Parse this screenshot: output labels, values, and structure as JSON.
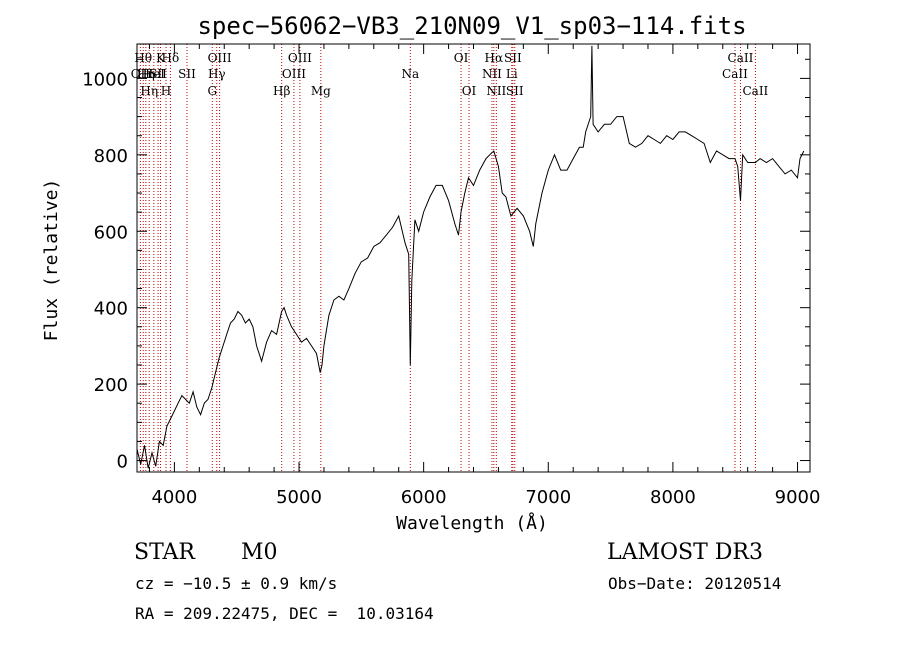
{
  "chart_data": {
    "type": "line",
    "title": "spec−56062−VB3_210N09_V1_sp03−114.fits",
    "xlabel": "Wavelength (Å)",
    "ylabel": "Flux (relative)",
    "xlim": [
      3700,
      9100
    ],
    "ylim": [
      -30,
      1090
    ],
    "x_ticks": [
      4000,
      5000,
      6000,
      7000,
      8000,
      9000
    ],
    "y_ticks": [
      0,
      200,
      400,
      600,
      800,
      1000
    ],
    "grid": false,
    "line_color": "#000000",
    "marker_color": "#c00000",
    "series": [
      {
        "x": [
          3700,
          3730,
          3760,
          3790,
          3820,
          3850,
          3880,
          3910,
          3940,
          3970,
          4000,
          4030,
          4060,
          4090,
          4120,
          4150,
          4180,
          4210,
          4240,
          4270,
          4300,
          4330,
          4360,
          4390,
          4420,
          4450,
          4480,
          4510,
          4540,
          4570,
          4600,
          4630,
          4660,
          4700,
          4740,
          4780,
          4820,
          4860,
          4880,
          4900,
          4940,
          4980,
          5020,
          5060,
          5100,
          5140,
          5170,
          5184,
          5200,
          5240,
          5280,
          5320,
          5360,
          5400,
          5450,
          5500,
          5550,
          5600,
          5650,
          5700,
          5750,
          5800,
          5850,
          5880,
          5893,
          5905,
          5930,
          5960,
          6000,
          6050,
          6100,
          6150,
          6200,
          6250,
          6280,
          6300,
          6330,
          6360,
          6400,
          6450,
          6500,
          6530,
          6563,
          6600,
          6630,
          6660,
          6700,
          6750,
          6800,
          6850,
          6880,
          6900,
          6950,
          7000,
          7050,
          7100,
          7150,
          7200,
          7250,
          7280,
          7300,
          7340,
          7350,
          7360,
          7400,
          7450,
          7500,
          7550,
          7600,
          7650,
          7700,
          7750,
          7800,
          7850,
          7900,
          7950,
          8000,
          8050,
          8100,
          8150,
          8200,
          8250,
          8300,
          8350,
          8400,
          8450,
          8498,
          8520,
          8542,
          8560,
          8600,
          8662,
          8700,
          8750,
          8800,
          8850,
          8900,
          8950,
          9000,
          9020,
          9050
        ],
        "y": [
          30,
          -10,
          40,
          -20,
          20,
          -15,
          50,
          40,
          90,
          110,
          130,
          150,
          170,
          160,
          150,
          180,
          140,
          120,
          150,
          160,
          190,
          230,
          270,
          300,
          330,
          360,
          370,
          390,
          380,
          360,
          370,
          350,
          300,
          260,
          310,
          340,
          330,
          390,
          400,
          380,
          350,
          330,
          310,
          320,
          300,
          280,
          230,
          250,
          300,
          380,
          420,
          430,
          420,
          450,
          490,
          520,
          530,
          560,
          570,
          590,
          610,
          640,
          570,
          540,
          250,
          470,
          630,
          600,
          650,
          690,
          720,
          720,
          680,
          620,
          590,
          650,
          700,
          740,
          720,
          760,
          790,
          800,
          810,
          770,
          700,
          690,
          640,
          660,
          640,
          600,
          560,
          620,
          700,
          760,
          800,
          760,
          760,
          790,
          820,
          820,
          860,
          900,
          1085,
          880,
          860,
          880,
          880,
          900,
          900,
          830,
          820,
          830,
          850,
          840,
          830,
          850,
          840,
          860,
          860,
          850,
          840,
          830,
          780,
          810,
          800,
          790,
          790,
          770,
          680,
          800,
          780,
          780,
          790,
          780,
          790,
          770,
          750,
          760,
          740,
          790,
          810
        ]
      }
    ],
    "line_markers": [
      {
        "x": 3727,
        "row": 1,
        "label": "OII"
      },
      {
        "x": 3750,
        "row": 0,
        "label": "Hθ"
      },
      {
        "x": 3771,
        "row": 1,
        "label": "Hη"
      },
      {
        "x": 3798,
        "row": 2,
        "label": "Hη"
      },
      {
        "x": 3835,
        "row": 1,
        "label": "HeI"
      },
      {
        "x": 3869,
        "row": 1,
        "label": "SII"
      },
      {
        "x": 3889,
        "row": 0,
        "label": "K"
      },
      {
        "x": 3933,
        "row": 2,
        "label": "H"
      },
      {
        "x": 3968,
        "row": 0,
        "label": "Hδ"
      },
      {
        "x": 4101,
        "row": 1,
        "label": "SII"
      },
      {
        "x": 4304,
        "row": 2,
        "label": "G"
      },
      {
        "x": 4340,
        "row": 1,
        "label": "Hγ"
      },
      {
        "x": 4363,
        "row": 0,
        "label": "OIII"
      },
      {
        "x": 4861,
        "row": 2,
        "label": "Hβ"
      },
      {
        "x": 4959,
        "row": 1,
        "label": "OIII"
      },
      {
        "x": 5007,
        "row": 0,
        "label": "OIII"
      },
      {
        "x": 5175,
        "row": 2,
        "label": "Mg"
      },
      {
        "x": 5893,
        "row": 1,
        "label": "Na"
      },
      {
        "x": 6300,
        "row": 0,
        "label": "OI"
      },
      {
        "x": 6364,
        "row": 2,
        "label": "OI"
      },
      {
        "x": 6548,
        "row": 1,
        "label": "NII"
      },
      {
        "x": 6563,
        "row": 0,
        "label": "Hα"
      },
      {
        "x": 6583,
        "row": 2,
        "label": "NII"
      },
      {
        "x": 6707,
        "row": 1,
        "label": "Li"
      },
      {
        "x": 6716,
        "row": 0,
        "label": "SII"
      },
      {
        "x": 6731,
        "row": 2,
        "label": "SII"
      },
      {
        "x": 8498,
        "row": 1,
        "label": "CaII"
      },
      {
        "x": 8542,
        "row": 0,
        "label": "CaII"
      },
      {
        "x": 8662,
        "row": 2,
        "label": "CaII"
      }
    ]
  },
  "info": {
    "object_class": "STAR",
    "subclass": "M0",
    "survey": "LAMOST DR3",
    "cz": "cz = −10.5 ± 0.9 km/s",
    "obs_date": "Obs−Date: 20120514",
    "coords": "RA = 209.22475, DEC =  10.03164"
  }
}
